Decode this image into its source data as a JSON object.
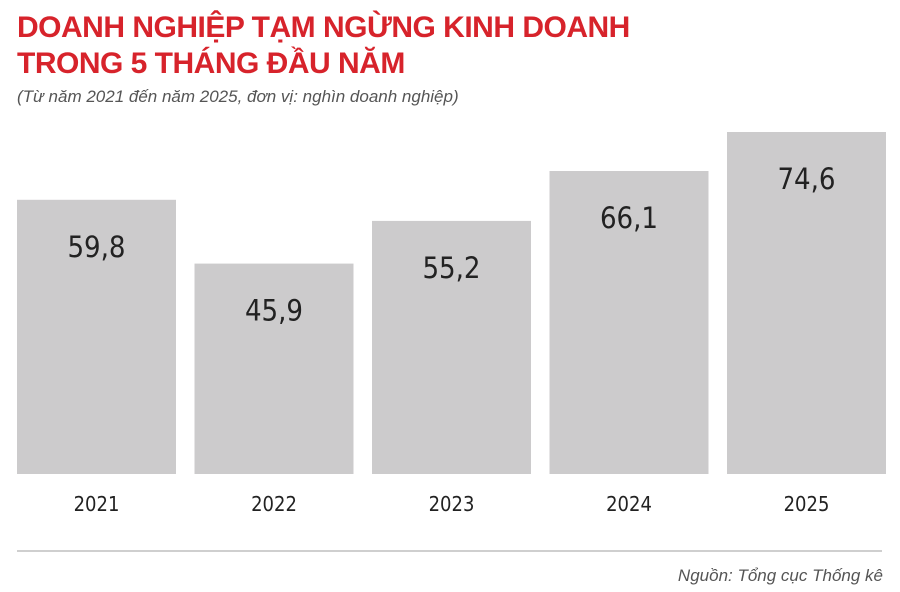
{
  "colors": {
    "title": "#d7232b",
    "bar": "#cccbcc",
    "text": "#222222",
    "rule": "#bfbfbf"
  },
  "header": {
    "title_line1": "DOANH NGHIỆP TẠM NGỪNG KINH DOANH",
    "title_line2": "TRONG 5 THÁNG ĐẦU NĂM",
    "subtitle": "(Từ năm 2021 đến năm 2025, đơn vị: nghìn doanh nghiệp)"
  },
  "footer": {
    "source": "Nguồn: Tổng cục Thống kê"
  },
  "chart_data": {
    "type": "bar",
    "title": "DOANH NGHIỆP TẠM NGỪNG KINH DOANH TRONG 5 THÁNG ĐẦU NĂM",
    "subtitle": "(Từ năm 2021 đến năm 2025, đơn vị: nghìn doanh nghiệp)",
    "categories": [
      "2021",
      "2022",
      "2023",
      "2024",
      "2025"
    ],
    "values": [
      59.8,
      45.9,
      55.2,
      66.1,
      74.6
    ],
    "value_labels": [
      "59,8",
      "45,9",
      "55,2",
      "66,1",
      "74,6"
    ],
    "xlabel": "",
    "ylabel": "",
    "ylim": [
      0,
      74.6
    ],
    "grid": false,
    "legend": "none"
  }
}
